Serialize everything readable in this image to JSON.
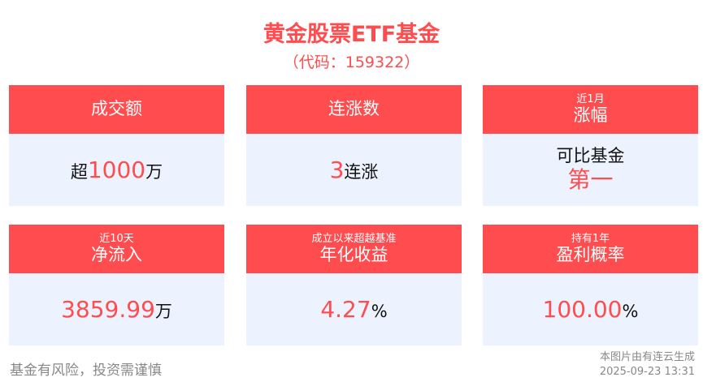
{
  "title": "黄金股票ETF基金",
  "code": "（代码：159322）",
  "cards": [
    {
      "sub": "",
      "label": "成交额",
      "prefix": "超",
      "value": "1000",
      "unit": "万"
    },
    {
      "sub": "",
      "label": "连涨数",
      "prefix": "",
      "value": "3",
      "unit": "连涨"
    },
    {
      "sub": "近1月",
      "label": "涨幅",
      "line1": "可比基金",
      "value": "第一"
    },
    {
      "sub": "近10天",
      "label": "净流入",
      "prefix": "",
      "value": "3859.99",
      "unit": "万"
    },
    {
      "sub": "成立以来超越基准",
      "label": "年化收益",
      "prefix": "",
      "value": "4.27",
      "unit": "%"
    },
    {
      "sub": "持有1年",
      "label": "盈利概率",
      "prefix": "",
      "value": "100.00",
      "unit": "%"
    }
  ],
  "footer": {
    "risk": "基金有风险，投资需谨慎",
    "source": "本图片由有连云生成",
    "timestamp": "2025-09-23 13:31"
  },
  "colors": {
    "accent": "#ff4c4f",
    "card_body": "#ecf3ff"
  }
}
